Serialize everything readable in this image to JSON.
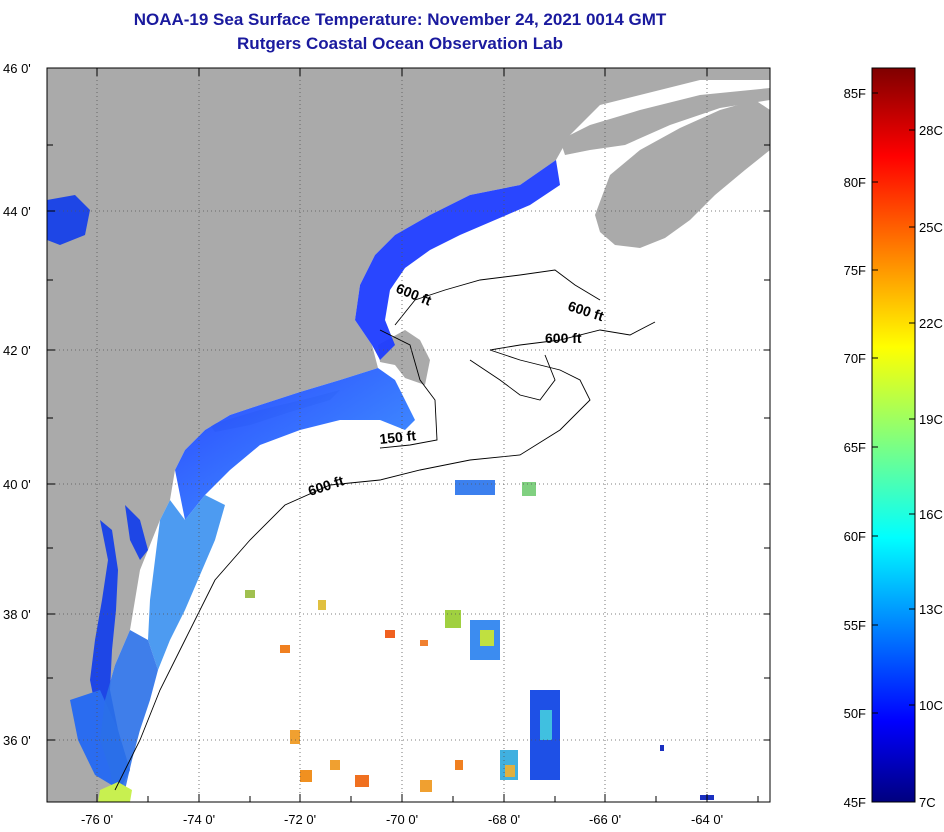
{
  "title": {
    "line1": "NOAA-19 Sea Surface Temperature:  November 24, 2021 0014 GMT",
    "line2": "Rutgers Coastal Ocean Observation Lab"
  },
  "axes": {
    "lat_labels": [
      "46 0'",
      "44 0'",
      "42 0'",
      "40 0'",
      "38 0'",
      "36 0'"
    ],
    "lon_labels": [
      "-76 0'",
      "-74 0'",
      "-72 0'",
      "-70 0'",
      "-68 0'",
      "-66 0'",
      "-64 0'"
    ]
  },
  "contours": {
    "labels": [
      "600 ft",
      "600 ft",
      "600 ft",
      "150 ft",
      "600 ft"
    ]
  },
  "colorbar": {
    "fahrenheit": [
      "85F",
      "80F",
      "75F",
      "70F",
      "65F",
      "60F",
      "55F",
      "50F",
      "45F"
    ],
    "celsius": [
      "28C",
      "25C",
      "22C",
      "19C",
      "16C",
      "13C",
      "10C",
      "7C"
    ]
  },
  "colors": {
    "land": "#aaaaaa",
    "ocean_nodata": "#ffffff",
    "title": "#1a1a9e"
  }
}
